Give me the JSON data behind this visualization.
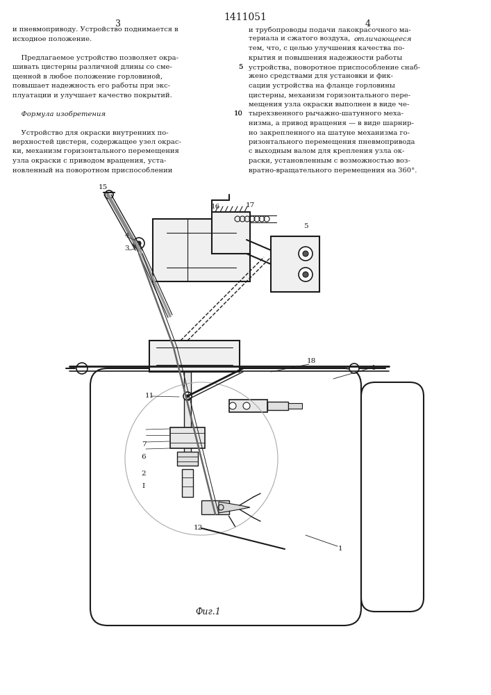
{
  "title": "1411051",
  "page_numbers": [
    "3",
    "4"
  ],
  "left_text": [
    "и пневмоприводу. Устройство поднимается в",
    "исходное положение.",
    "",
    "    Предлагаемое устройство позволяет окра-",
    "шивать цистерны различной длины со сме-",
    "щенной в любое положение горловиной,",
    "повышает надежность его работы при экс-",
    "плуатации и улучшает качество покрытий.",
    "",
    "    Формула изобретения",
    "",
    "    Устройство для окраски внутренних по-",
    "верхностей цистерн, содержащее узел окрас-",
    "ки, механизм горизонтального перемещения",
    "узла окраски с приводом вращения, уста-",
    "новленный на поворотном приспособлении"
  ],
  "right_text": [
    "и трубопроводы подачи лакокрасочного ма-",
    "териала и сжатого воздуха, отличающееся",
    "тем, что, с целью улучшения качества по-",
    "крытия и повышения надежности работы",
    "устройства, поворотное приспособление снаб-",
    "жено средствами для установки и фик-",
    "сации устройства на фланце горловины",
    "цистерны, механизм горизонтального пере-",
    "мещения узла окраски выполнен в виде че-",
    "тырехзвенного рычажно-шатунного меха-",
    "низма, а привод вращения — в виде шарнир-",
    "но закрепленного на шатуне механизма го-",
    "ризонтального перемещения пневмопривода",
    "с выходным валом для крепления узла ок-",
    "раски, установленным с возможностью воз-",
    "вратно-вращательного перемещения на 360°."
  ],
  "fig_label": "Фиг.1",
  "bg_color": "#ffffff",
  "line_color": "#1a1a1a",
  "label_color": "#1a1a1a"
}
